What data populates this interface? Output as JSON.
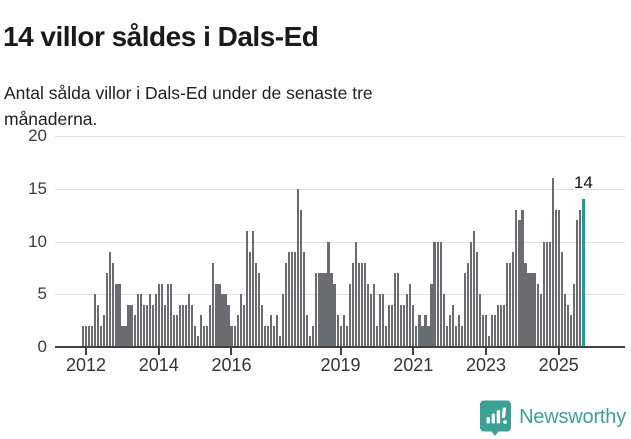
{
  "header": {
    "title": "14 villor såldes i Dals-Ed",
    "subtitle": "Antal sålda villor i Dals-Ed under de senaste tre månaderna."
  },
  "chart_data": {
    "type": "bar",
    "title": "14 villor såldes i Dals-Ed",
    "xlabel": "",
    "ylabel": "",
    "ylim": [
      0,
      20
    ],
    "yticks": [
      0,
      5,
      10,
      15,
      20
    ],
    "grid": "horizontal",
    "frequency": "monthly",
    "values": [
      2,
      2,
      2,
      2,
      5,
      4,
      2,
      3,
      7,
      9,
      8,
      6,
      6,
      2,
      2,
      4,
      4,
      3,
      5,
      5,
      4,
      4,
      5,
      4,
      5,
      6,
      6,
      4,
      6,
      6,
      3,
      3,
      4,
      4,
      4,
      5,
      4,
      2,
      1,
      3,
      2,
      2,
      4,
      8,
      6,
      6,
      5,
      5,
      4,
      2,
      2,
      3,
      5,
      4,
      11,
      9,
      11,
      8,
      7,
      4,
      2,
      2,
      3,
      2,
      3,
      1,
      5,
      8,
      9,
      9,
      9,
      15,
      13,
      9,
      3,
      1,
      2,
      7,
      7,
      7,
      7,
      10,
      7,
      6,
      3,
      2,
      3,
      2,
      6,
      8,
      10,
      8,
      8,
      8,
      6,
      5,
      6,
      2,
      5,
      5,
      2,
      4,
      4,
      7,
      7,
      4,
      4,
      5,
      6,
      4,
      2,
      3,
      2,
      3,
      2,
      6,
      10,
      10,
      10,
      5,
      2,
      3,
      4,
      2,
      3,
      2,
      7,
      8,
      10,
      11,
      9,
      5,
      3,
      3,
      1,
      3,
      3,
      4,
      4,
      4,
      8,
      8,
      9,
      13,
      12,
      13,
      8,
      7,
      7,
      7,
      6,
      5,
      10,
      10,
      10,
      16,
      13,
      13,
      9,
      5,
      4,
      3,
      6,
      12,
      13,
      14
    ],
    "xticks": [
      {
        "label": "2012",
        "index": 1
      },
      {
        "label": "2014",
        "index": 25
      },
      {
        "label": "2016",
        "index": 49
      },
      {
        "label": "2019",
        "index": 85
      },
      {
        "label": "2021",
        "index": 109
      },
      {
        "label": "2023",
        "index": 133
      },
      {
        "label": "2025",
        "index": 157
      }
    ],
    "highlight": {
      "index": 165,
      "value": 14,
      "label": "14"
    },
    "colors": {
      "bar": "#6b6b72",
      "highlight": "#12a0a2",
      "grid": "#e1e1e1",
      "axis": "#404040"
    }
  },
  "footer": {
    "brand": "Newsworthy",
    "brand_color": "#3da096",
    "icon": "newsworthy-bubble-chart-icon"
  }
}
